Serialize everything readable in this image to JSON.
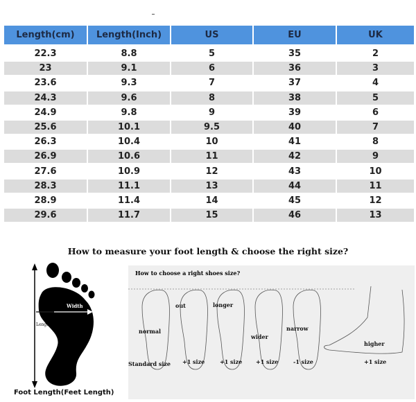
{
  "size_table": {
    "headers": [
      "Length(cm)",
      "Length(Inch)",
      "US",
      "EU",
      "UK"
    ],
    "rows": [
      [
        "22.3",
        "8.8",
        "5",
        "35",
        "2"
      ],
      [
        "23",
        "9.1",
        "6",
        "36",
        "3"
      ],
      [
        "23.6",
        "9.3",
        "7",
        "37",
        "4"
      ],
      [
        "24.3",
        "9.6",
        "8",
        "38",
        "5"
      ],
      [
        "24.9",
        "9.8",
        "9",
        "39",
        "6"
      ],
      [
        "25.6",
        "10.1",
        "9.5",
        "40",
        "7"
      ],
      [
        "26.3",
        "10.4",
        "10",
        "41",
        "8"
      ],
      [
        "26.9",
        "10.6",
        "11",
        "42",
        "9"
      ],
      [
        "27.6",
        "10.9",
        "12",
        "43",
        "10"
      ],
      [
        "28.3",
        "11.1",
        "13",
        "44",
        "11"
      ],
      [
        "28.9",
        "11.4",
        "14",
        "45",
        "12"
      ],
      [
        "29.6",
        "11.7",
        "15",
        "46",
        "13"
      ]
    ],
    "header_color": "#4f93de",
    "stripe_color": "#dcdcdc"
  },
  "measure_title": "How to measure your foot length & choose the right size?",
  "foot_diagram": {
    "width_label": "Width",
    "length_label": "Length",
    "caption": "Foot Length(Feet Length)"
  },
  "choose_panel": {
    "title": "How to choose a right shoes size?",
    "feet": [
      {
        "type": "normal",
        "advice": "Standard size"
      },
      {
        "type": "out",
        "advice": "+1 size"
      },
      {
        "type": "longer",
        "advice": "+1 size"
      },
      {
        "type": "wider",
        "advice": "+1 size"
      },
      {
        "type": "narrow",
        "advice": "-1 size"
      },
      {
        "type": "higher",
        "advice": "+1 size"
      }
    ]
  }
}
